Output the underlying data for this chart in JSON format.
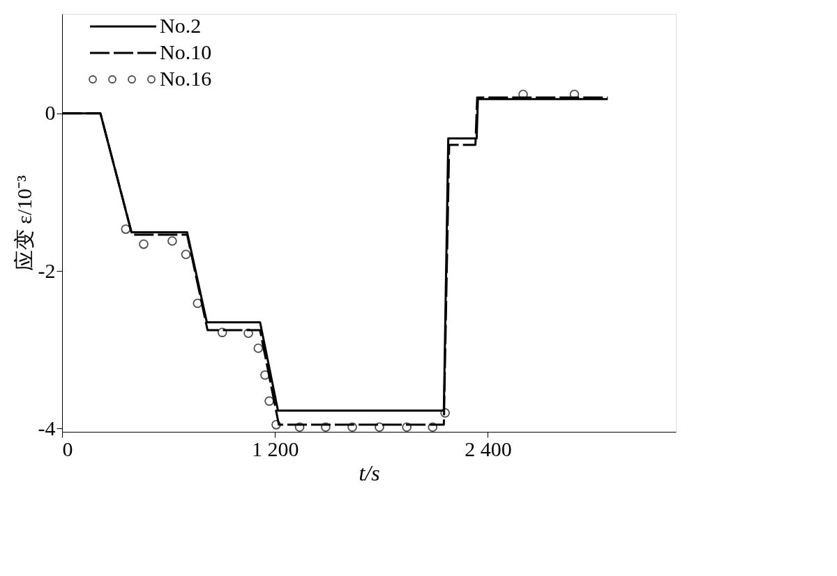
{
  "chart_data": {
    "type": "line",
    "xlabel": "t/s",
    "ylabel": "应变 ε/10⁻³",
    "xlim": [
      0,
      3460
    ],
    "ylim": [
      -4.04,
      1.26
    ],
    "xticks": [
      0,
      {
        "value": 1200,
        "label": "1 200"
      },
      {
        "value": 2400,
        "label": "2 400"
      }
    ],
    "yticks": [
      0,
      -2,
      -4
    ],
    "grid": false,
    "legend": "top left",
    "series": [
      {
        "name": "No.2",
        "type": "line",
        "color": "#000000",
        "line_style": "solid",
        "x": [
          0,
          216,
          391,
          705,
          816,
          1116,
          1217,
          2152,
          2177,
          2337,
          2344,
          3076
        ],
        "values": [
          0,
          0,
          -1.51,
          -1.51,
          -2.65,
          -2.65,
          -3.77,
          -3.77,
          -0.32,
          -0.32,
          0.18,
          0.18
        ]
      },
      {
        "name": "No.10",
        "type": "line",
        "color": "#000000",
        "line_style": "dashed",
        "x": [
          0,
          216,
          395,
          705,
          820,
          1116,
          1222,
          2152,
          2182,
          2330,
          2340,
          3076
        ],
        "values": [
          0,
          0,
          -1.54,
          -1.54,
          -2.75,
          -2.75,
          -3.95,
          -3.95,
          -0.4,
          -0.4,
          0.2,
          0.2
        ]
      },
      {
        "name": "No.16",
        "type": "scatter",
        "color": "#000000",
        "marker": "circle",
        "x": [
          359,
          460,
          621,
          698,
          764,
          903,
          1050,
          1106,
          1144,
          1168,
          1207,
          1339,
          1486,
          1636,
          1789,
          1943,
          2089,
          2159,
          2599,
          2888
        ],
        "values": [
          -1.47,
          -1.66,
          -1.62,
          -1.79,
          -2.41,
          -2.78,
          -2.79,
          -2.98,
          -3.32,
          -3.65,
          -3.95,
          -3.98,
          -3.98,
          -3.98,
          -3.98,
          -3.98,
          -3.98,
          -3.8,
          0.24,
          0.24
        ]
      }
    ]
  }
}
